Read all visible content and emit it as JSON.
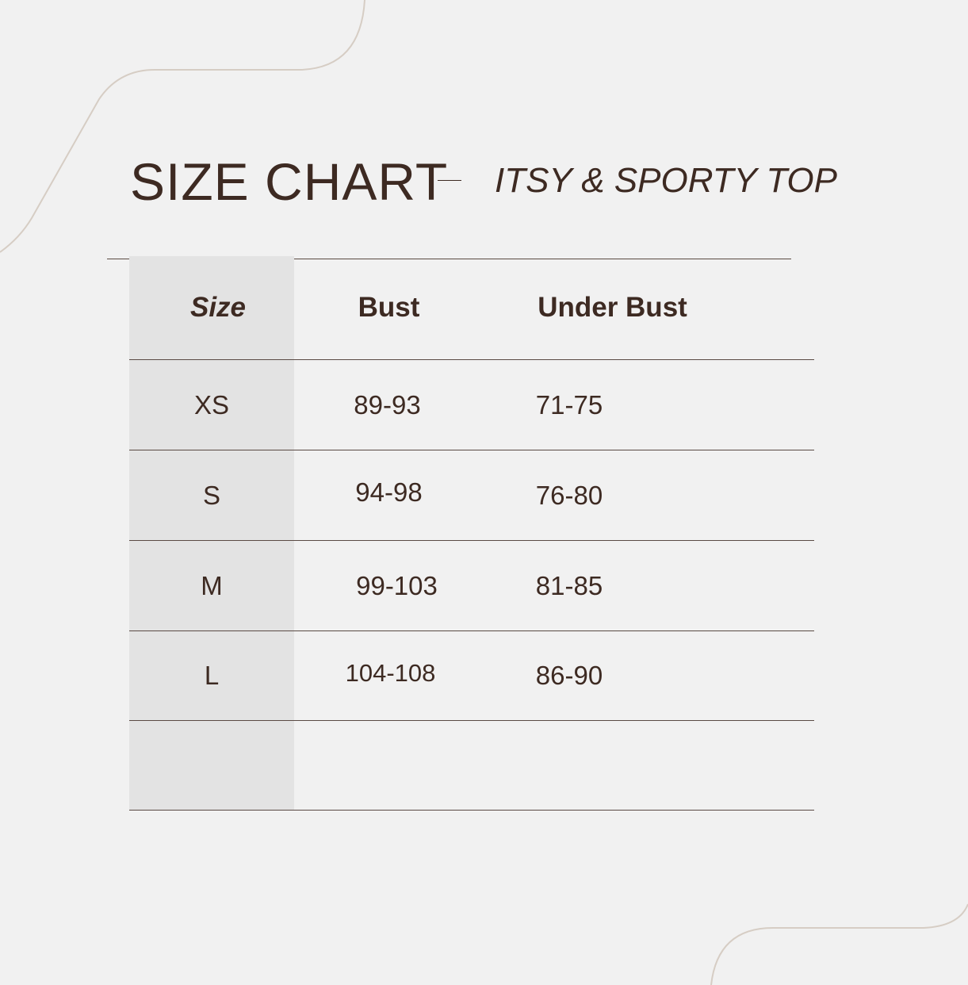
{
  "title": "SIZE CHART",
  "subtitle": "ITSY & SPORTY TOP",
  "colors": {
    "text": "#3d2a22",
    "background": "#f1f1f1",
    "size_column": "#e3e3e3",
    "decor_line": "#d6cdc4"
  },
  "table": {
    "headers": [
      "Size",
      "Bust",
      "Under Bust"
    ],
    "rows": [
      [
        "XS",
        "89-93",
        "71-75"
      ],
      [
        "S",
        "94-98",
        "76-80"
      ],
      [
        "M",
        "99-103",
        "81-85"
      ],
      [
        "L",
        "104-108",
        "86-90"
      ],
      [
        "",
        "",
        ""
      ]
    ]
  }
}
